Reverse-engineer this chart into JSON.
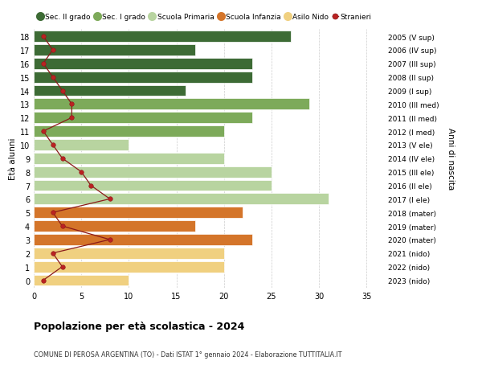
{
  "ages": [
    18,
    17,
    16,
    15,
    14,
    13,
    12,
    11,
    10,
    9,
    8,
    7,
    6,
    5,
    4,
    3,
    2,
    1,
    0
  ],
  "years_labels": [
    "2005 (V sup)",
    "2006 (IV sup)",
    "2007 (III sup)",
    "2008 (II sup)",
    "2009 (I sup)",
    "2010 (III med)",
    "2011 (II med)",
    "2012 (I med)",
    "2013 (V ele)",
    "2014 (IV ele)",
    "2015 (III ele)",
    "2016 (II ele)",
    "2017 (I ele)",
    "2018 (mater)",
    "2019 (mater)",
    "2020 (mater)",
    "2021 (nido)",
    "2022 (nido)",
    "2023 (nido)"
  ],
  "bar_values": [
    27,
    17,
    23,
    23,
    16,
    29,
    23,
    20,
    10,
    20,
    25,
    25,
    31,
    22,
    17,
    23,
    20,
    20,
    10
  ],
  "bar_colors": [
    "#3d6b35",
    "#3d6b35",
    "#3d6b35",
    "#3d6b35",
    "#3d6b35",
    "#7daa5a",
    "#7daa5a",
    "#7daa5a",
    "#b8d4a0",
    "#b8d4a0",
    "#b8d4a0",
    "#b8d4a0",
    "#b8d4a0",
    "#d4752a",
    "#d4752a",
    "#d4752a",
    "#f0d080",
    "#f0d080",
    "#f0d080"
  ],
  "stranieri_values": [
    1,
    2,
    1,
    2,
    3,
    4,
    4,
    1,
    2,
    3,
    5,
    6,
    8,
    2,
    3,
    8,
    2,
    3,
    1
  ],
  "legend_labels": [
    "Sec. II grado",
    "Sec. I grado",
    "Scuola Primaria",
    "Scuola Infanzia",
    "Asilo Nido",
    "Stranieri"
  ],
  "legend_colors": [
    "#3d6b35",
    "#7daa5a",
    "#b8d4a0",
    "#d4752a",
    "#f0d080",
    "#aa1111"
  ],
  "title_bold": "Popolazione per età scolastica - 2024",
  "title_sub": "COMUNE DI PEROSA ARGENTINA (TO) - Dati ISTAT 1° gennaio 2024 - Elaborazione TUTTITALIA.IT",
  "ylabel_left": "Età alunni",
  "ylabel_right": "Anni di nascita",
  "xlim": [
    0,
    37
  ],
  "ylim_min": -0.55,
  "ylim_max": 18.55,
  "xticks": [
    0,
    5,
    10,
    15,
    20,
    25,
    30,
    35
  ],
  "grid_color": "#cccccc",
  "bar_height": 0.82
}
